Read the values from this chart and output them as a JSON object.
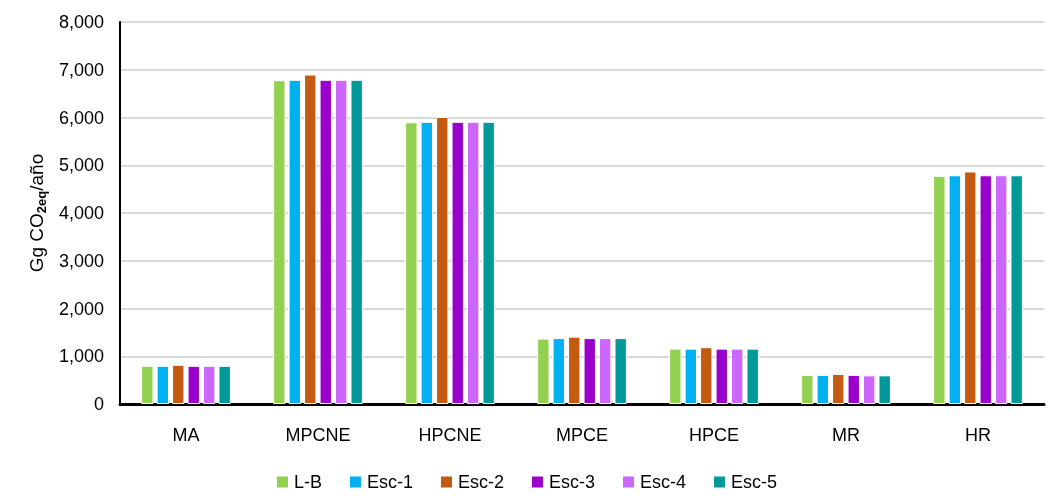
{
  "chart_data": {
    "type": "bar",
    "ylabel": "Gg CO$_{2eq}$/año",
    "categories": [
      "MA",
      "MPCNE",
      "HPCNE",
      "MPCE",
      "HPCE",
      "MR",
      "HR"
    ],
    "series": [
      {
        "name": "L-B",
        "color": "#92d050",
        "values": [
          800,
          6780,
          5900,
          1370,
          1160,
          610,
          4780
        ]
      },
      {
        "name": "Esc-1",
        "color": "#00b0f0",
        "values": [
          800,
          6790,
          5910,
          1380,
          1160,
          610,
          4790
        ]
      },
      {
        "name": "Esc-2",
        "color": "#c55a11",
        "values": [
          820,
          6900,
          6010,
          1410,
          1190,
          630,
          4870
        ]
      },
      {
        "name": "Esc-3",
        "color": "#9900cc",
        "values": [
          800,
          6790,
          5910,
          1380,
          1160,
          610,
          4790
        ]
      },
      {
        "name": "Esc-4",
        "color": "#cc66ff",
        "values": [
          800,
          6790,
          5910,
          1380,
          1160,
          600,
          4790
        ]
      },
      {
        "name": "Esc-5",
        "color": "#009999",
        "values": [
          800,
          6790,
          5910,
          1380,
          1160,
          600,
          4790
        ]
      }
    ],
    "ylim": [
      0,
      8000
    ],
    "yticks": [
      0,
      {
        "value": 1000,
        "label": "1,000"
      },
      {
        "value": 2000,
        "label": "2,000"
      },
      {
        "value": 3000,
        "label": "3,000"
      },
      {
        "value": 4000,
        "label": "4,000"
      },
      {
        "value": 5000,
        "label": "5,000"
      },
      {
        "value": 6000,
        "label": "6,000"
      },
      {
        "value": 7000,
        "label": "7,000"
      },
      {
        "value": 8000,
        "label": "8,000"
      }
    ],
    "grid": "y",
    "legend": "bottom"
  }
}
